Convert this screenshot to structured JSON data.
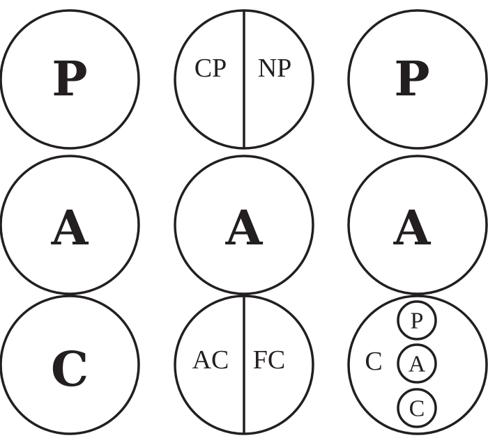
{
  "colors": {
    "stroke": "#231f20",
    "fill": "#ffffff",
    "text": "#231f20"
  },
  "left_column": {
    "top": "P",
    "middle": "A",
    "bottom": "C"
  },
  "middle_column": {
    "top_left": "CP",
    "top_right": "NP",
    "middle": "A",
    "bottom_left": "AC",
    "bottom_right": "FC"
  },
  "right_column": {
    "top": "P",
    "middle": "A",
    "bottom_outer": "C",
    "bottom_inner": [
      "P",
      "A",
      "C"
    ]
  }
}
